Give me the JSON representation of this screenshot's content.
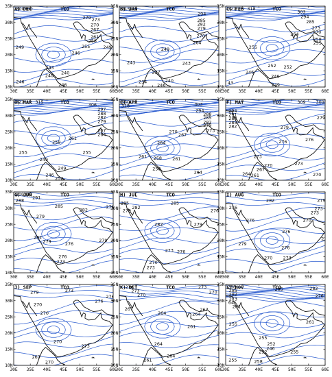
{
  "field": "TCO",
  "lon_ticks": [
    "30E",
    "35E",
    "40E",
    "45E",
    "50E",
    "55E",
    "60E"
  ],
  "lat_ticks": [
    "35N",
    "30N",
    "25N",
    "20N",
    "15N",
    "10N"
  ],
  "panels": [
    {
      "tag": "A) DEC",
      "labels": [
        {
          "t": "300",
          "lon": 30.7,
          "lat": 34.2
        },
        {
          "t": "300",
          "lon": 33.2,
          "lat": 34.2
        },
        {
          "t": "279",
          "lon": 50.8,
          "lat": 31.5
        },
        {
          "t": "273",
          "lon": 53.5,
          "lat": 30.8
        },
        {
          "t": "270",
          "lon": 53.2,
          "lat": 29.2
        },
        {
          "t": "267",
          "lon": 53.2,
          "lat": 27.8
        },
        {
          "t": "261",
          "lon": 53.2,
          "lat": 25.5
        },
        {
          "t": "258",
          "lon": 52.5,
          "lat": 24.3
        },
        {
          "t": "255",
          "lon": 50.5,
          "lat": 22.6
        },
        {
          "t": "249",
          "lon": 30.6,
          "lat": 22.3
        },
        {
          "t": "249",
          "lon": 57.0,
          "lat": 22.3
        },
        {
          "t": "246",
          "lon": 47.5,
          "lat": 20.6
        },
        {
          "t": "243",
          "lon": 39.6,
          "lat": 16.0
        },
        {
          "t": "240",
          "lon": 39.5,
          "lat": 13.6
        },
        {
          "t": "240",
          "lon": 44.3,
          "lat": 14.4
        },
        {
          "t": "246",
          "lon": 30.7,
          "lat": 11.6
        },
        {
          "t": "246",
          "lon": 43.5,
          "lat": 10.7
        }
      ]
    },
    {
      "tag": "B) JAN",
      "labels": [
        {
          "t": "315",
          "lon": 30.7,
          "lat": 34.2
        },
        {
          "t": "312",
          "lon": 33.0,
          "lat": 34.2
        },
        {
          "t": "294",
          "lon": 53.6,
          "lat": 32.6
        },
        {
          "t": "285",
          "lon": 53.5,
          "lat": 30.6
        },
        {
          "t": "282",
          "lon": 53.5,
          "lat": 29.4
        },
        {
          "t": "279",
          "lon": 53.5,
          "lat": 28.2
        },
        {
          "t": "270",
          "lon": 53.3,
          "lat": 25.8
        },
        {
          "t": "264",
          "lon": 52.2,
          "lat": 23.7
        },
        {
          "t": "249",
          "lon": 42.6,
          "lat": 21.7
        },
        {
          "t": "243",
          "lon": 32.3,
          "lat": 17.6
        },
        {
          "t": "243",
          "lon": 49.0,
          "lat": 17.4
        },
        {
          "t": "237",
          "lon": 39.8,
          "lat": 14.6
        },
        {
          "t": "234",
          "lon": 35.8,
          "lat": 11.7
        },
        {
          "t": "240",
          "lon": 43.8,
          "lat": 12.0
        },
        {
          "t": "246",
          "lon": 41.4,
          "lat": 10.6
        }
      ]
    },
    {
      "tag": "C) FEB",
      "labels": [
        {
          "t": "327",
          "lon": 30.6,
          "lat": 34.2
        },
        {
          "t": "318",
          "lon": 36.5,
          "lat": 34.2
        },
        {
          "t": "303",
          "lon": 51.6,
          "lat": 33.3
        },
        {
          "t": "294",
          "lon": 52.6,
          "lat": 31.8
        },
        {
          "t": "285",
          "lon": 54.3,
          "lat": 30.2
        },
        {
          "t": "273",
          "lon": 56.0,
          "lat": 28.3
        },
        {
          "t": "270",
          "lon": 56.3,
          "lat": 27.0
        },
        {
          "t": "264",
          "lon": 49.5,
          "lat": 26.4
        },
        {
          "t": "258",
          "lon": 56.4,
          "lat": 24.8
        },
        {
          "t": "255",
          "lon": 56.4,
          "lat": 23.6
        },
        {
          "t": "255",
          "lon": 37.0,
          "lat": 22.4
        },
        {
          "t": "252",
          "lon": 42.7,
          "lat": 16.6
        },
        {
          "t": "252",
          "lon": 47.5,
          "lat": 16.2
        },
        {
          "t": "246",
          "lon": 36.0,
          "lat": 14.6
        },
        {
          "t": "246",
          "lon": 43.7,
          "lat": 13.4
        },
        {
          "t": "43",
          "lon": 30.6,
          "lat": 11.3
        },
        {
          "t": "249",
          "lon": 43.8,
          "lat": 10.7
        }
      ]
    },
    {
      "tag": "D) MAR",
      "labels": [
        {
          "t": "327",
          "lon": 30.6,
          "lat": 34.2
        },
        {
          "t": "315",
          "lon": 36.5,
          "lat": 34.2
        },
        {
          "t": "306",
          "lon": 52.5,
          "lat": 33.4
        },
        {
          "t": "297",
          "lon": 55.3,
          "lat": 32.0
        },
        {
          "t": "288",
          "lon": 55.3,
          "lat": 30.6
        },
        {
          "t": "282",
          "lon": 55.3,
          "lat": 29.4
        },
        {
          "t": "279",
          "lon": 55.3,
          "lat": 28.2
        },
        {
          "t": "267",
          "lon": 55.3,
          "lat": 25.4
        },
        {
          "t": "264",
          "lon": 55.3,
          "lat": 24.2
        },
        {
          "t": "261",
          "lon": 46.5,
          "lat": 23.0
        },
        {
          "t": "258",
          "lon": 41.6,
          "lat": 21.8
        },
        {
          "t": "255",
          "lon": 31.6,
          "lat": 18.6
        },
        {
          "t": "255",
          "lon": 50.8,
          "lat": 18.6
        },
        {
          "t": "249",
          "lon": 37.8,
          "lat": 16.4
        },
        {
          "t": "249",
          "lon": 43.3,
          "lat": 13.8
        },
        {
          "t": "246",
          "lon": 39.6,
          "lat": 11.6
        },
        {
          "t": "252",
          "lon": 42.5,
          "lat": 10.6
        }
      ]
    },
    {
      "tag": "E) APR",
      "labels": [
        {
          "t": "330",
          "lon": 30.6,
          "lat": 34.2
        },
        {
          "t": "318",
          "lon": 30.6,
          "lat": 33.0
        },
        {
          "t": "303",
          "lon": 52.6,
          "lat": 33.5
        },
        {
          "t": "294",
          "lon": 53.0,
          "lat": 31.6
        },
        {
          "t": "288",
          "lon": 55.3,
          "lat": 30.4
        },
        {
          "t": "285",
          "lon": 55.3,
          "lat": 29.3
        },
        {
          "t": "282",
          "lon": 55.3,
          "lat": 28.0
        },
        {
          "t": "279",
          "lon": 55.3,
          "lat": 27.0
        },
        {
          "t": "273",
          "lon": 56.3,
          "lat": 25.4
        },
        {
          "t": "270",
          "lon": 45.0,
          "lat": 25.0
        },
        {
          "t": "267",
          "lon": 47.8,
          "lat": 24.0
        },
        {
          "t": "264",
          "lon": 41.4,
          "lat": 21.6
        },
        {
          "t": "261",
          "lon": 35.8,
          "lat": 17.4
        },
        {
          "t": "258",
          "lon": 40.3,
          "lat": 16.8
        },
        {
          "t": "261",
          "lon": 46.0,
          "lat": 16.6
        },
        {
          "t": "258",
          "lon": 40.0,
          "lat": 13.6
        },
        {
          "t": "264",
          "lon": 52.5,
          "lat": 12.5
        }
      ]
    },
    {
      "tag": "F) MAY",
      "labels": [
        {
          "t": "309",
          "lon": 51.6,
          "lat": 34.2
        },
        {
          "t": "300",
          "lon": 57.2,
          "lat": 34.2
        },
        {
          "t": "294",
          "lon": 30.9,
          "lat": 31.5
        },
        {
          "t": "291",
          "lon": 30.9,
          "lat": 30.3
        },
        {
          "t": "288",
          "lon": 30.9,
          "lat": 29.1
        },
        {
          "t": "285",
          "lon": 30.9,
          "lat": 27.9
        },
        {
          "t": "282",
          "lon": 30.9,
          "lat": 26.7
        },
        {
          "t": "279",
          "lon": 57.5,
          "lat": 29.3
        },
        {
          "t": "279",
          "lon": 46.5,
          "lat": 26.4
        },
        {
          "t": "276",
          "lon": 46.0,
          "lat": 21.9
        },
        {
          "t": "276",
          "lon": 54.0,
          "lat": 22.6
        },
        {
          "t": "273",
          "lon": 38.4,
          "lat": 17.4
        },
        {
          "t": "273",
          "lon": 50.8,
          "lat": 15.2
        },
        {
          "t": "270",
          "lon": 41.6,
          "lat": 14.6
        },
        {
          "t": "267",
          "lon": 39.3,
          "lat": 13.3
        },
        {
          "t": "264",
          "lon": 35.0,
          "lat": 12.0
        },
        {
          "t": "261",
          "lon": 37.6,
          "lat": 11.5
        },
        {
          "t": "270",
          "lon": 56.3,
          "lat": 11.8
        }
      ]
    },
    {
      "tag": "G) JUN",
      "labels": [
        {
          "t": "309",
          "lon": 30.6,
          "lat": 34.2
        },
        {
          "t": "300",
          "lon": 33.0,
          "lat": 34.2
        },
        {
          "t": "291",
          "lon": 35.6,
          "lat": 33.3
        },
        {
          "t": "288",
          "lon": 30.6,
          "lat": 32.4
        },
        {
          "t": "285",
          "lon": 42.4,
          "lat": 30.6
        },
        {
          "t": "282",
          "lon": 49.8,
          "lat": 29.4
        },
        {
          "t": "279",
          "lon": 36.8,
          "lat": 27.4
        },
        {
          "t": "276",
          "lon": 57.8,
          "lat": 30.4
        },
        {
          "t": "282",
          "lon": 36.0,
          "lat": 21.0
        },
        {
          "t": "279",
          "lon": 38.8,
          "lat": 19.7
        },
        {
          "t": "279",
          "lon": 55.7,
          "lat": 20.0
        },
        {
          "t": "276",
          "lon": 45.5,
          "lat": 19.0
        },
        {
          "t": "276",
          "lon": 43.5,
          "lat": 15.0
        },
        {
          "t": "273",
          "lon": 43.0,
          "lat": 13.5
        }
      ]
    },
    {
      "tag": "H) JUL",
      "labels": [
        {
          "t": "285",
          "lon": 30.4,
          "lat": 31.6
        },
        {
          "t": "285",
          "lon": 45.5,
          "lat": 31.6
        },
        {
          "t": "282",
          "lon": 33.8,
          "lat": 30.2
        },
        {
          "t": "279",
          "lon": 31.0,
          "lat": 29.2
        },
        {
          "t": "276",
          "lon": 57.5,
          "lat": 29.2
        },
        {
          "t": "282",
          "lon": 40.6,
          "lat": 25.0
        },
        {
          "t": "279",
          "lon": 52.5,
          "lat": 25.0
        },
        {
          "t": "273",
          "lon": 43.8,
          "lat": 17.0
        },
        {
          "t": "276",
          "lon": 47.4,
          "lat": 16.5
        },
        {
          "t": "270",
          "lon": 39.0,
          "lat": 13.2
        },
        {
          "t": "273",
          "lon": 38.2,
          "lat": 11.6
        }
      ]
    },
    {
      "tag": "I) AUG",
      "labels": [
        {
          "t": "282",
          "lon": 42.2,
          "lat": 32.4
        },
        {
          "t": "279",
          "lon": 57.6,
          "lat": 32.4
        },
        {
          "t": "276",
          "lon": 31.0,
          "lat": 30.2
        },
        {
          "t": "273",
          "lon": 56.8,
          "lat": 29.9
        },
        {
          "t": "276",
          "lon": 36.2,
          "lat": 26.3
        },
        {
          "t": "273",
          "lon": 55.6,
          "lat": 28.6
        },
        {
          "t": "270",
          "lon": 53.3,
          "lat": 26.3
        },
        {
          "t": "276",
          "lon": 47.0,
          "lat": 22.8
        },
        {
          "t": "279",
          "lon": 33.8,
          "lat": 19.0
        },
        {
          "t": "273",
          "lon": 58.8,
          "lat": 20.6
        },
        {
          "t": "276",
          "lon": 46.8,
          "lat": 17.8
        },
        {
          "t": "273",
          "lon": 47.3,
          "lat": 14.6
        },
        {
          "t": "270",
          "lon": 41.6,
          "lat": 14.6
        }
      ]
    },
    {
      "tag": "J) SEP",
      "labels": [
        {
          "t": "279",
          "lon": 35.0,
          "lat": 32.6
        },
        {
          "t": "273",
          "lon": 45.5,
          "lat": 33.2
        },
        {
          "t": "276",
          "lon": 54.5,
          "lat": 29.9
        },
        {
          "t": "276",
          "lon": 57.8,
          "lat": 31.3
        },
        {
          "t": "270",
          "lon": 36.0,
          "lat": 28.8
        },
        {
          "t": "270",
          "lon": 38.0,
          "lat": 26.2
        },
        {
          "t": "270",
          "lon": 42.0,
          "lat": 17.4
        },
        {
          "t": "273",
          "lon": 50.4,
          "lat": 16.0
        },
        {
          "t": "267",
          "lon": 35.5,
          "lat": 12.6
        },
        {
          "t": "270",
          "lon": 39.5,
          "lat": 11.0
        }
      ]
    },
    {
      "tag": "K) OCT",
      "labels": [
        {
          "t": "276",
          "lon": 31.8,
          "lat": 34.2
        },
        {
          "t": "273",
          "lon": 53.8,
          "lat": 34.2
        },
        {
          "t": "270",
          "lon": 57.0,
          "lat": 32.6
        },
        {
          "t": "273",
          "lon": 33.6,
          "lat": 33.0
        },
        {
          "t": "270",
          "lon": 35.4,
          "lat": 31.8
        },
        {
          "t": "267",
          "lon": 31.6,
          "lat": 27.4
        },
        {
          "t": "264",
          "lon": 41.6,
          "lat": 26.2
        },
        {
          "t": "267",
          "lon": 54.3,
          "lat": 27.2
        },
        {
          "t": "264",
          "lon": 52.0,
          "lat": 25.8
        },
        {
          "t": "261",
          "lon": 50.5,
          "lat": 22.0
        },
        {
          "t": "264",
          "lon": 40.5,
          "lat": 16.6
        },
        {
          "t": "264",
          "lon": 44.3,
          "lat": 12.9
        },
        {
          "t": "261",
          "lon": 37.3,
          "lat": 11.6
        }
      ]
    },
    {
      "tag": "L) NOV",
      "labels": [
        {
          "t": "288",
          "lon": 30.6,
          "lat": 34.3
        },
        {
          "t": "285",
          "lon": 31.0,
          "lat": 33.2
        },
        {
          "t": "282",
          "lon": 31.0,
          "lat": 32.0
        },
        {
          "t": "285",
          "lon": 44.8,
          "lat": 33.6
        },
        {
          "t": "282",
          "lon": 55.3,
          "lat": 33.8
        },
        {
          "t": "276",
          "lon": 57.0,
          "lat": 31.5
        },
        {
          "t": "273",
          "lon": 31.0,
          "lat": 30.5
        },
        {
          "t": "64",
          "lon": 30.8,
          "lat": 29.4
        },
        {
          "t": "261",
          "lon": 32.0,
          "lat": 28.2
        },
        {
          "t": "261",
          "lon": 54.2,
          "lat": 23.4
        },
        {
          "t": "255",
          "lon": 31.0,
          "lat": 22.8
        },
        {
          "t": "255",
          "lon": 40.0,
          "lat": 18.5
        },
        {
          "t": "252",
          "lon": 42.5,
          "lat": 16.6
        },
        {
          "t": "246",
          "lon": 42.3,
          "lat": 15.3
        },
        {
          "t": "252",
          "lon": 40.0,
          "lat": 14.2
        },
        {
          "t": "255",
          "lon": 49.5,
          "lat": 14.2
        },
        {
          "t": "255",
          "lon": 30.9,
          "lat": 11.6
        },
        {
          "t": "258",
          "lon": 38.6,
          "lat": 11.2
        }
      ]
    }
  ]
}
